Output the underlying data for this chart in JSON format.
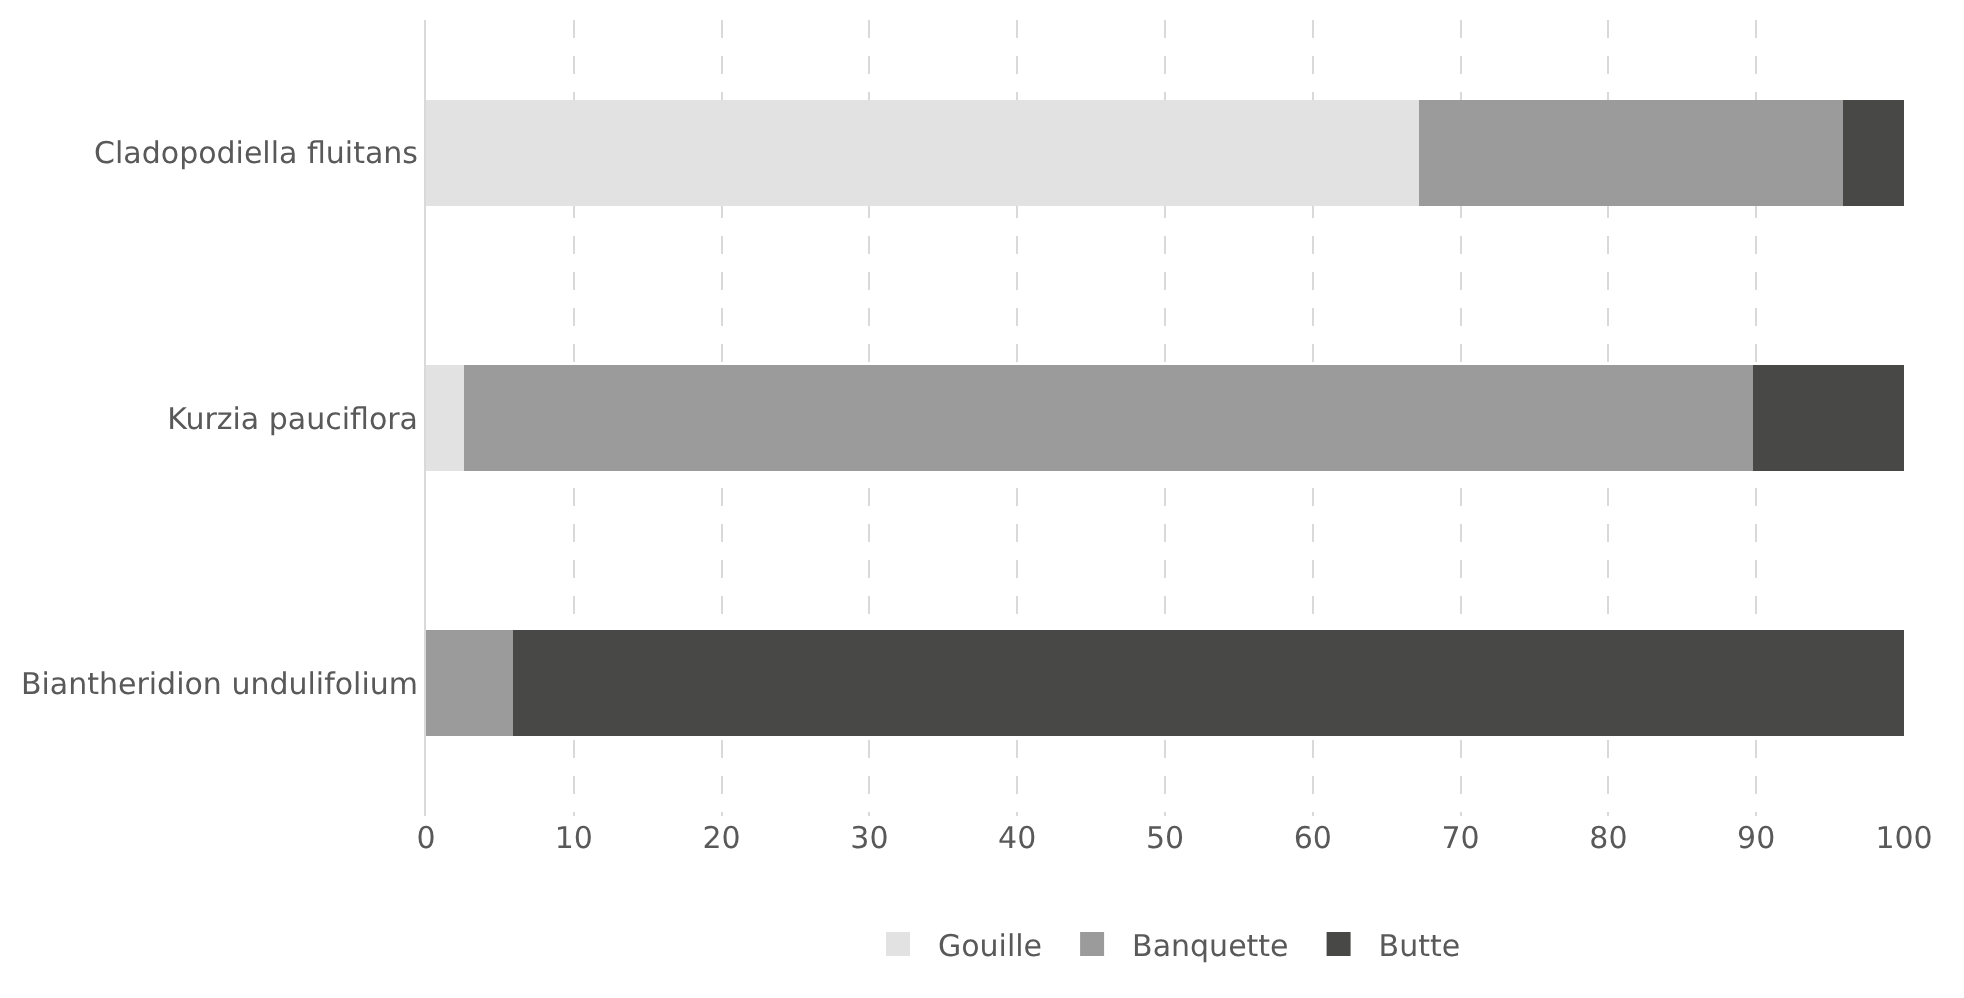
{
  "chart_data": {
    "type": "bar",
    "orientation": "horizontal",
    "stacked": true,
    "categories": [
      "Cladopodiella fluitans",
      "Kurzia pauciflora",
      "Biantheridion undulifolium"
    ],
    "series": [
      {
        "name": "Gouille",
        "color": "#e2e2e2",
        "values": [
          67.2,
          2.6,
          0
        ]
      },
      {
        "name": "Banquette",
        "color": "#9b9b9b",
        "values": [
          28.7,
          87.2,
          5.9
        ]
      },
      {
        "name": "Butte",
        "color": "#484846",
        "values": [
          4.1,
          10.2,
          94.1
        ]
      }
    ],
    "xlim": [
      0,
      100
    ],
    "xticks": [
      0,
      10,
      20,
      30,
      40,
      50,
      60,
      70,
      80,
      90,
      100
    ],
    "grid": "x",
    "legend": "bottom"
  }
}
